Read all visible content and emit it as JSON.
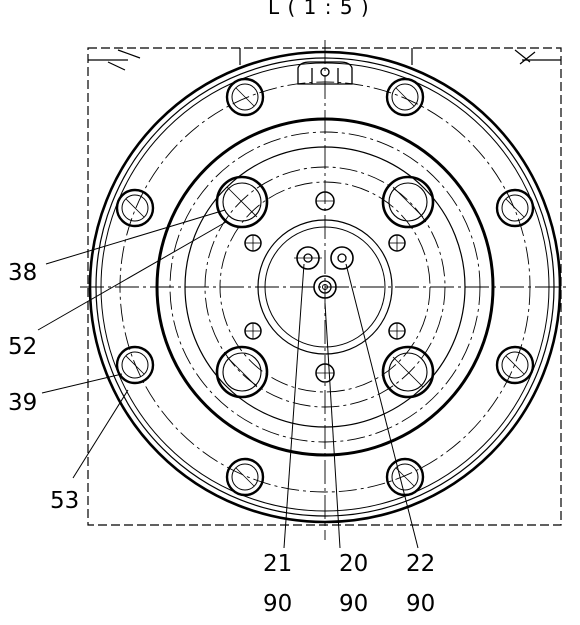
{
  "view_label": "L ( 1 : 5 )",
  "callouts": {
    "c38": "38",
    "c52": "52",
    "c39": "39",
    "c53": "53",
    "c21": "21",
    "c20": "20",
    "c22": "22",
    "c90a": "90",
    "c90b": "90",
    "c90c": "90"
  },
  "colors": {
    "line": "#000000",
    "background": "#ffffff"
  }
}
